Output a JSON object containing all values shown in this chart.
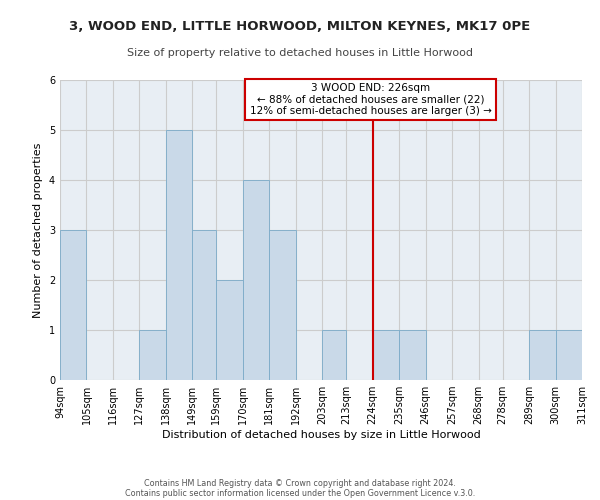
{
  "title1": "3, WOOD END, LITTLE HORWOOD, MILTON KEYNES, MK17 0PE",
  "title2": "Size of property relative to detached houses in Little Horwood",
  "xlabel": "Distribution of detached houses by size in Little Horwood",
  "ylabel": "Number of detached properties",
  "bin_labels": [
    "94sqm",
    "105sqm",
    "116sqm",
    "127sqm",
    "138sqm",
    "149sqm",
    "159sqm",
    "170sqm",
    "181sqm",
    "192sqm",
    "203sqm",
    "213sqm",
    "224sqm",
    "235sqm",
    "246sqm",
    "257sqm",
    "268sqm",
    "278sqm",
    "289sqm",
    "300sqm",
    "311sqm"
  ],
  "bin_edges": [
    94,
    105,
    116,
    127,
    138,
    149,
    159,
    170,
    181,
    192,
    203,
    213,
    224,
    235,
    246,
    257,
    268,
    278,
    289,
    300,
    311
  ],
  "bar_heights": [
    3,
    0,
    0,
    1,
    5,
    3,
    2,
    4,
    3,
    0,
    1,
    0,
    1,
    1,
    0,
    0,
    0,
    0,
    1,
    1,
    0
  ],
  "bar_color": "#c9d9e8",
  "bar_edgecolor": "#7baac8",
  "grid_color": "#cccccc",
  "vline_x": 224,
  "vline_color": "#cc0000",
  "annotation_text": "3 WOOD END: 226sqm\n← 88% of detached houses are smaller (22)\n12% of semi-detached houses are larger (3) →",
  "annotation_box_edgecolor": "#cc0000",
  "annotation_box_facecolor": "#ffffff",
  "ylim": [
    0,
    6
  ],
  "yticks": [
    0,
    1,
    2,
    3,
    4,
    5,
    6
  ],
  "footer1": "Contains HM Land Registry data © Crown copyright and database right 2024.",
  "footer2": "Contains public sector information licensed under the Open Government Licence v.3.0.",
  "bg_color": "#e8eef4",
  "fig_bg_color": "#ffffff",
  "title1_fontsize": 9.5,
  "title2_fontsize": 8.0,
  "annotation_fontsize": 7.5,
  "xlabel_fontsize": 8.0,
  "ylabel_fontsize": 8.0,
  "tick_fontsize": 7.0,
  "footer_fontsize": 5.8
}
